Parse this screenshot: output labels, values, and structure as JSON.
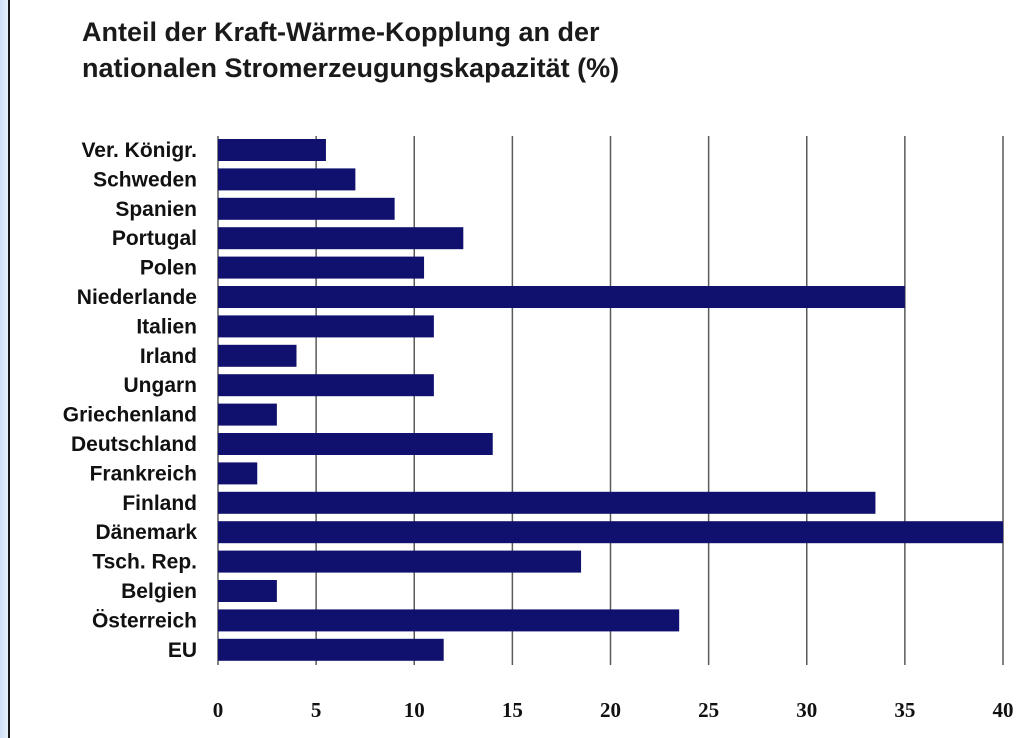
{
  "chart_data": {
    "type": "bar",
    "orientation": "horizontal",
    "title": "Anteil der Kraft-Wärme-Kopplung an der\nnationalen Stromerzeugungskapazität (%)",
    "categories": [
      "Ver. Königr.",
      "Schweden",
      "Spanien",
      "Portugal",
      "Polen",
      "Niederlande",
      "Italien",
      "Irland",
      "Ungarn",
      "Griechenland",
      "Deutschland",
      "Frankreich",
      "Finland",
      "Dänemark",
      "Tsch. Rep.",
      "Belgien",
      "Österreich",
      "EU"
    ],
    "values": [
      5.5,
      7,
      9,
      12.5,
      10.5,
      35,
      11,
      4,
      11,
      3,
      14,
      2,
      33.5,
      40,
      18.5,
      3,
      23.5,
      11.5
    ],
    "xlim": [
      0,
      40
    ],
    "xticks": [
      "0",
      "5",
      "10",
      "15",
      "20",
      "25",
      "30",
      "35",
      "40"
    ],
    "grid": true,
    "bar_color": "#10106e",
    "grid_color": "#5a5a5a"
  }
}
